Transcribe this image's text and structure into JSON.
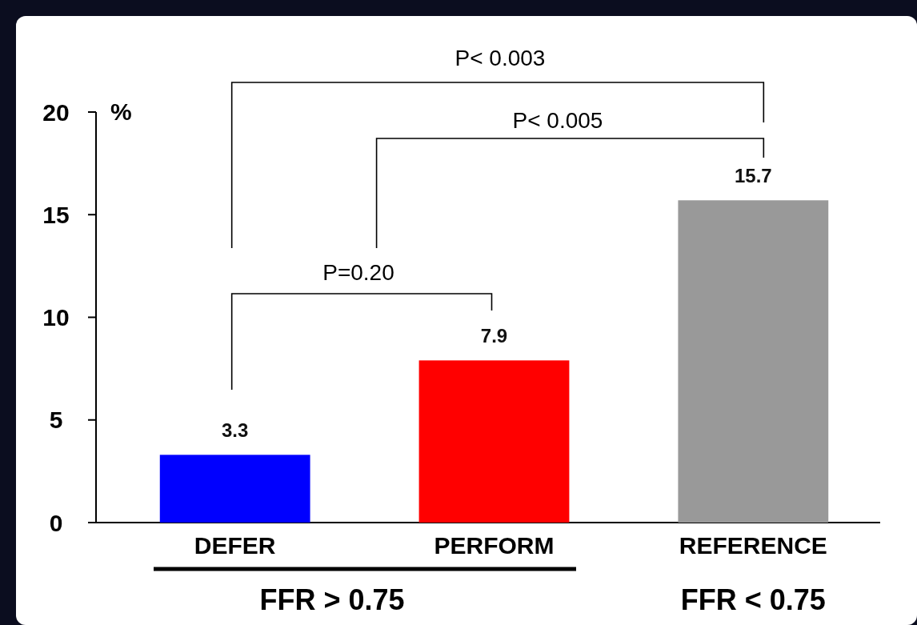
{
  "chart_data": {
    "type": "bar",
    "ylabel": "%",
    "categories": [
      "DEFER",
      "PERFORM",
      "REFERENCE"
    ],
    "values": [
      3.3,
      7.9,
      15.7
    ],
    "colors": [
      "#0000ff",
      "#ff0000",
      "#999999"
    ],
    "ylim": [
      0,
      20
    ],
    "yticks": [
      0,
      5,
      10,
      15,
      20
    ],
    "data_labels": true,
    "annotations": [
      "P< 0.003",
      "P< 0.005",
      "P=0.20",
      "FFR > 0.75",
      "FFR < 0.75"
    ]
  }
}
